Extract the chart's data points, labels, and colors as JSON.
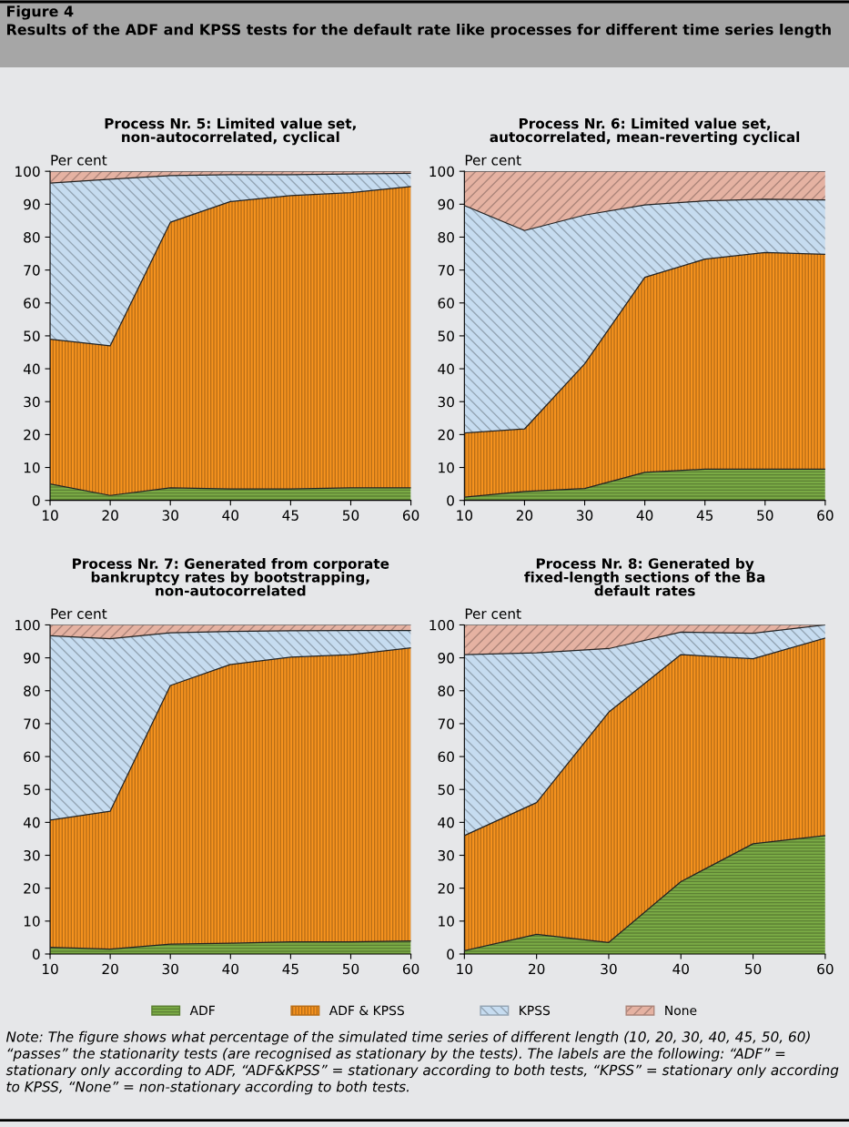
{
  "chart_data": [
    {
      "type": "area",
      "stacked": true,
      "title": "Process Nr. 5: Limited value set,\nnon-autocorrelated, cyclical",
      "ylabel": "Per cent",
      "annotations": [
        "Figure 4",
        "Results of the ADF and KPSS tests for the default rate like processes for different time series length"
      ],
      "categories": [
        "10",
        "20",
        "30",
        "40",
        "45",
        "50",
        "60"
      ],
      "ylim": [
        0,
        100
      ],
      "yticks": [
        0,
        10,
        20,
        30,
        40,
        50,
        60,
        70,
        80,
        90,
        100
      ],
      "legend": "bottom",
      "series": [
        {
          "name": "ADF",
          "color": "#7aab45",
          "values": [
            5,
            1.5,
            3.8,
            3.5,
            3.5,
            3.8,
            3.8
          ]
        },
        {
          "name": "ADF & KPSS",
          "color": "#f7931e",
          "values": [
            44,
            45.5,
            80.7,
            87.3,
            89.1,
            89.7,
            91.6
          ]
        },
        {
          "name": "KPSS",
          "color": "#c6dcf0",
          "values": [
            47.4,
            50.6,
            14.2,
            8.2,
            6.4,
            5.7,
            4.0
          ]
        },
        {
          "name": "None",
          "color": "#e5b2a2",
          "values": [
            3.6,
            2.4,
            1.3,
            1.0,
            1.0,
            0.8,
            0.6
          ]
        }
      ]
    },
    {
      "type": "area",
      "stacked": true,
      "title": "Process Nr. 6: Limited value set,\nautocorrelated, mean-reverting cyclical",
      "ylabel": "Per cent",
      "categories": [
        "10",
        "20",
        "30",
        "40",
        "45",
        "50",
        "60"
      ],
      "ylim": [
        0,
        100
      ],
      "yticks": [
        0,
        10,
        20,
        30,
        40,
        50,
        60,
        70,
        80,
        90,
        100
      ],
      "legend": false,
      "series": [
        {
          "color": "#7aab45",
          "values": [
            1,
            2.7,
            3.6,
            8.5,
            9.5,
            9.5,
            9.5
          ]
        },
        {
          "color": "#f7931e",
          "values": [
            19.5,
            19,
            37.9,
            59.3,
            63.8,
            65.8,
            65.3
          ]
        },
        {
          "color": "#c6dcf0",
          "values": [
            69.1,
            60.3,
            45.2,
            22,
            17.7,
            16.2,
            16.5
          ]
        },
        {
          "color": "#e5b2a2",
          "values": [
            10.4,
            18,
            13.3,
            10.2,
            9,
            8.5,
            8.7
          ]
        }
      ]
    },
    {
      "type": "area",
      "stacked": true,
      "title": "Process Nr. 7: Generated from corporate\nbankruptcy rates by bootstrapping,\nnon-autocorrelated",
      "ylabel": "Per cent",
      "categories": [
        "10",
        "20",
        "30",
        "40",
        "45",
        "50",
        "60"
      ],
      "ylim": [
        0,
        100
      ],
      "yticks": [
        0,
        10,
        20,
        30,
        40,
        50,
        60,
        70,
        80,
        90,
        100
      ],
      "legend": false,
      "series": [
        {
          "color": "#7aab45",
          "values": [
            2,
            1.5,
            3,
            3.3,
            3.7,
            3.7,
            4
          ]
        },
        {
          "color": "#f7931e",
          "values": [
            38.7,
            41.9,
            78.6,
            84.7,
            86.5,
            87.3,
            89
          ]
        },
        {
          "color": "#c6dcf0",
          "values": [
            56,
            52.4,
            16,
            10,
            8,
            7.3,
            5.3
          ]
        },
        {
          "color": "#e5b2a2",
          "values": [
            3.3,
            4.2,
            2.4,
            2,
            1.8,
            1.7,
            1.7
          ]
        }
      ]
    },
    {
      "type": "area",
      "stacked": true,
      "title": "Process Nr. 8: Generated by\nfixed-length sections of the Ba\ndefault rates",
      "ylabel": "Per cent",
      "annotations": [
        "Note: The figure shows what percentage of the simulated time series of different length (10, 20, 30, 40, 45, 50, 60) “passes” the stationarity tests (are recognised as stationary by the tests). The labels are the following: “ADF” = stationary only according to ADF, “ADF&KPSS” = stationary according to both tests, “KPSS” = stationary only according to KPSS, “None” = non-stationary according to both tests."
      ],
      "categories": [
        "10",
        "20",
        "30",
        "40",
        "50",
        "60"
      ],
      "ylim": [
        0,
        100
      ],
      "yticks": [
        0,
        10,
        20,
        30,
        40,
        50,
        60,
        70,
        80,
        90,
        100
      ],
      "legend": false,
      "series": [
        {
          "color": "#7aab45",
          "values": [
            1,
            6,
            3.5,
            22,
            33.5,
            36
          ]
        },
        {
          "color": "#f7931e",
          "values": [
            35,
            40,
            70,
            69,
            56.2,
            60
          ]
        },
        {
          "color": "#c6dcf0",
          "values": [
            55,
            45.5,
            19.3,
            6.8,
            7.8,
            4
          ]
        },
        {
          "color": "#e5b2a2",
          "values": [
            9,
            8.5,
            7.2,
            2.2,
            2.5,
            0
          ]
        }
      ]
    }
  ]
}
